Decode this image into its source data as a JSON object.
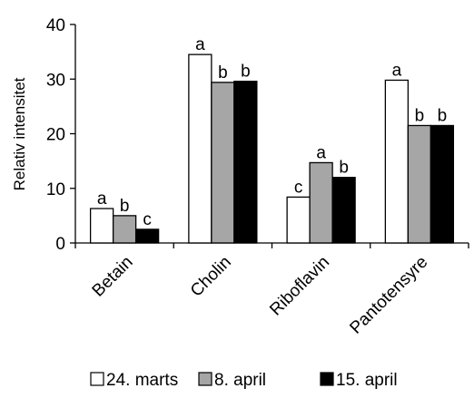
{
  "chart_data": {
    "type": "bar",
    "ylabel": "Relativ intensitet",
    "ylim": [
      0,
      40
    ],
    "yticks": [
      "0",
      "10",
      "20",
      "30",
      "40"
    ],
    "grid": false,
    "legend_position": "bottom",
    "categories": [
      "Betain",
      "Cholin",
      "Riboflavin",
      "Pantotensyre"
    ],
    "series": [
      {
        "name": "24. marts",
        "color": "#ffffff",
        "values": [
          6.3,
          34.5,
          8.4,
          29.8
        ],
        "letters": [
          "a",
          "a",
          "c",
          "a"
        ]
      },
      {
        "name": "8. april",
        "color": "#a6a6a6",
        "values": [
          5.0,
          29.4,
          14.7,
          21.5
        ],
        "letters": [
          "b",
          "b",
          "a",
          "b"
        ]
      },
      {
        "name": "15. april",
        "color": "#000000",
        "values": [
          2.5,
          29.6,
          12.0,
          21.5
        ],
        "letters": [
          "c",
          "b",
          "b",
          "b"
        ]
      }
    ]
  }
}
